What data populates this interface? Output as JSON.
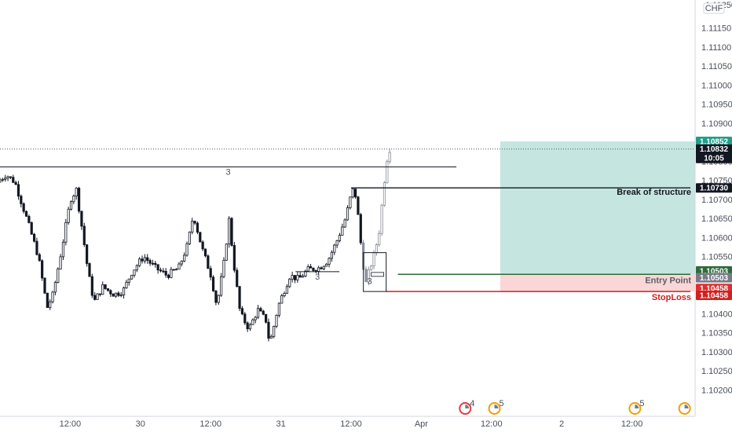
{
  "chart_data": {
    "type": "candlestick",
    "currency_badge": "CHF",
    "y_axis": {
      "ticks": [
        "1.11150",
        "1.11100",
        "1.11050",
        "1.11000",
        "1.10950",
        "1.10900",
        "1.10800",
        "1.10750",
        "1.10700",
        "1.10650",
        "1.10600",
        "1.10550",
        "1.10400",
        "1.10350",
        "1.10300",
        "1.10250",
        "1.10200"
      ],
      "top_cut_label": "1.11250"
    },
    "x_axis": {
      "ticks": [
        {
          "label": "12:00",
          "t": 12
        },
        {
          "label": "30",
          "t": 24
        },
        {
          "label": "12:00",
          "t": 36
        },
        {
          "label": "31",
          "t": 48
        },
        {
          "label": "12:00",
          "t": 60
        },
        {
          "label": "Apr",
          "t": 72
        },
        {
          "label": "12:00",
          "t": 84
        },
        {
          "label": "2",
          "t": 96
        },
        {
          "label": "12:00",
          "t": 108
        }
      ]
    },
    "price_path": [
      [
        0,
        1.10745
      ],
      [
        1.5,
        1.10765
      ],
      [
        3,
        1.10745
      ],
      [
        5,
        1.1065
      ],
      [
        7,
        1.1055
      ],
      [
        8.5,
        1.10415
      ],
      [
        9.5,
        1.1045
      ],
      [
        11,
        1.1057
      ],
      [
        12.5,
        1.107
      ],
      [
        13.5,
        1.10725
      ],
      [
        14.5,
        1.1062
      ],
      [
        15.5,
        1.1051
      ],
      [
        16.5,
        1.1043
      ],
      [
        18,
        1.1047
      ],
      [
        20,
        1.1045
      ],
      [
        21.5,
        1.1046
      ],
      [
        23,
        1.1051
      ],
      [
        25,
        1.1055
      ],
      [
        27,
        1.1052
      ],
      [
        29,
        1.105
      ],
      [
        31,
        1.1052
      ],
      [
        32.5,
        1.1058
      ],
      [
        33.5,
        1.1066
      ],
      [
        35,
        1.1057
      ],
      [
        36.5,
        1.105
      ],
      [
        37.5,
        1.1042
      ],
      [
        39,
        1.1056
      ],
      [
        39.5,
        1.1066
      ],
      [
        40.5,
        1.1052
      ],
      [
        41.5,
        1.104
      ],
      [
        43,
        1.1036
      ],
      [
        44.5,
        1.1041
      ],
      [
        46,
        1.1038
      ],
      [
        46.5,
        1.1032
      ],
      [
        47,
        1.1035
      ],
      [
        48,
        1.1042
      ],
      [
        49,
        1.1046
      ],
      [
        50,
        1.105
      ],
      [
        51.5,
        1.1049
      ],
      [
        53,
        1.10515
      ],
      [
        55,
        1.1052
      ],
      [
        56.5,
        1.1054
      ],
      [
        58,
        1.1059
      ],
      [
        59.5,
        1.1065
      ],
      [
        60.5,
        1.10715
      ],
      [
        61,
        1.1073
      ],
      [
        61.5,
        1.1068
      ],
      [
        62,
        1.106
      ],
      [
        62.5,
        1.1053
      ],
      [
        63,
        1.1048
      ],
      [
        63.5,
        1.1051
      ],
      [
        64.5,
        1.1056
      ],
      [
        65.3,
        1.1062
      ],
      [
        66,
        1.1073
      ],
      [
        66.5,
        1.108
      ],
      [
        67,
        1.10832
      ]
    ],
    "horizontal_lines": [
      {
        "y": 1.10785,
        "x0": 0,
        "x1": 78,
        "label": "3"
      },
      {
        "y": 1.1051,
        "x0": 50.5,
        "x1": 58,
        "label": "3"
      },
      {
        "y": 1.1073,
        "x0": 60,
        "x1": 118,
        "label": "Break of structure"
      },
      {
        "y": 1.10503,
        "x0": 68,
        "x1": 118,
        "label": "Entry Point"
      },
      {
        "y": 1.10458,
        "x0": 66,
        "x1": 118,
        "label": "StopLoss"
      }
    ],
    "last_price_line": 1.10832,
    "boxes": [
      {
        "x0": 62.1,
        "x1": 66,
        "y0": 1.10458,
        "y1": 1.1056,
        "label": "3"
      }
    ],
    "position": {
      "x0": 85.5,
      "x1": 118,
      "target": 1.10852,
      "entry": 1.10503,
      "stop": 1.10458
    },
    "price_tags": [
      {
        "value": "1.10852",
        "color": "#1e9f8a",
        "text_color": "#ffffff",
        "y": 1.10852
      },
      {
        "value": "1.10832",
        "sub": "10:05",
        "color": "#131722",
        "text_color": "#ffffff",
        "y": 1.10832
      },
      {
        "value": "1.10730",
        "color": "#131722",
        "text_color": "#ffffff",
        "y": 1.1073
      },
      {
        "value": "1.10503",
        "color": "#2e6b3a",
        "text_color": "#ffffff",
        "y": 1.10512
      },
      {
        "value": "1.10503",
        "color": "#787b86",
        "text_color": "#ffffff",
        "y": 1.10494
      },
      {
        "value": "1.10458",
        "color": "#e02f2f",
        "text_color": "#ffffff",
        "y": 1.10466
      },
      {
        "value": "1.10458",
        "color": "#d12020",
        "text_color": "#ffffff",
        "y": 1.10448
      }
    ],
    "event_markers": [
      {
        "t": 79.5,
        "count": "4",
        "color": "#e03b3b"
      },
      {
        "t": 84.5,
        "count": "5",
        "color": "#f0a000"
      },
      {
        "t": 108.5,
        "count": "5",
        "color": "#f0a000"
      },
      {
        "t": 117,
        "count": "",
        "color": "#f0a000"
      }
    ],
    "colors": {
      "target_zone": "#b2ddd6",
      "stop_zone": "#f9cfcf",
      "candles": "#131722",
      "recent_candles": "#8a8e99",
      "axis_text": "#4a4e5a"
    }
  }
}
